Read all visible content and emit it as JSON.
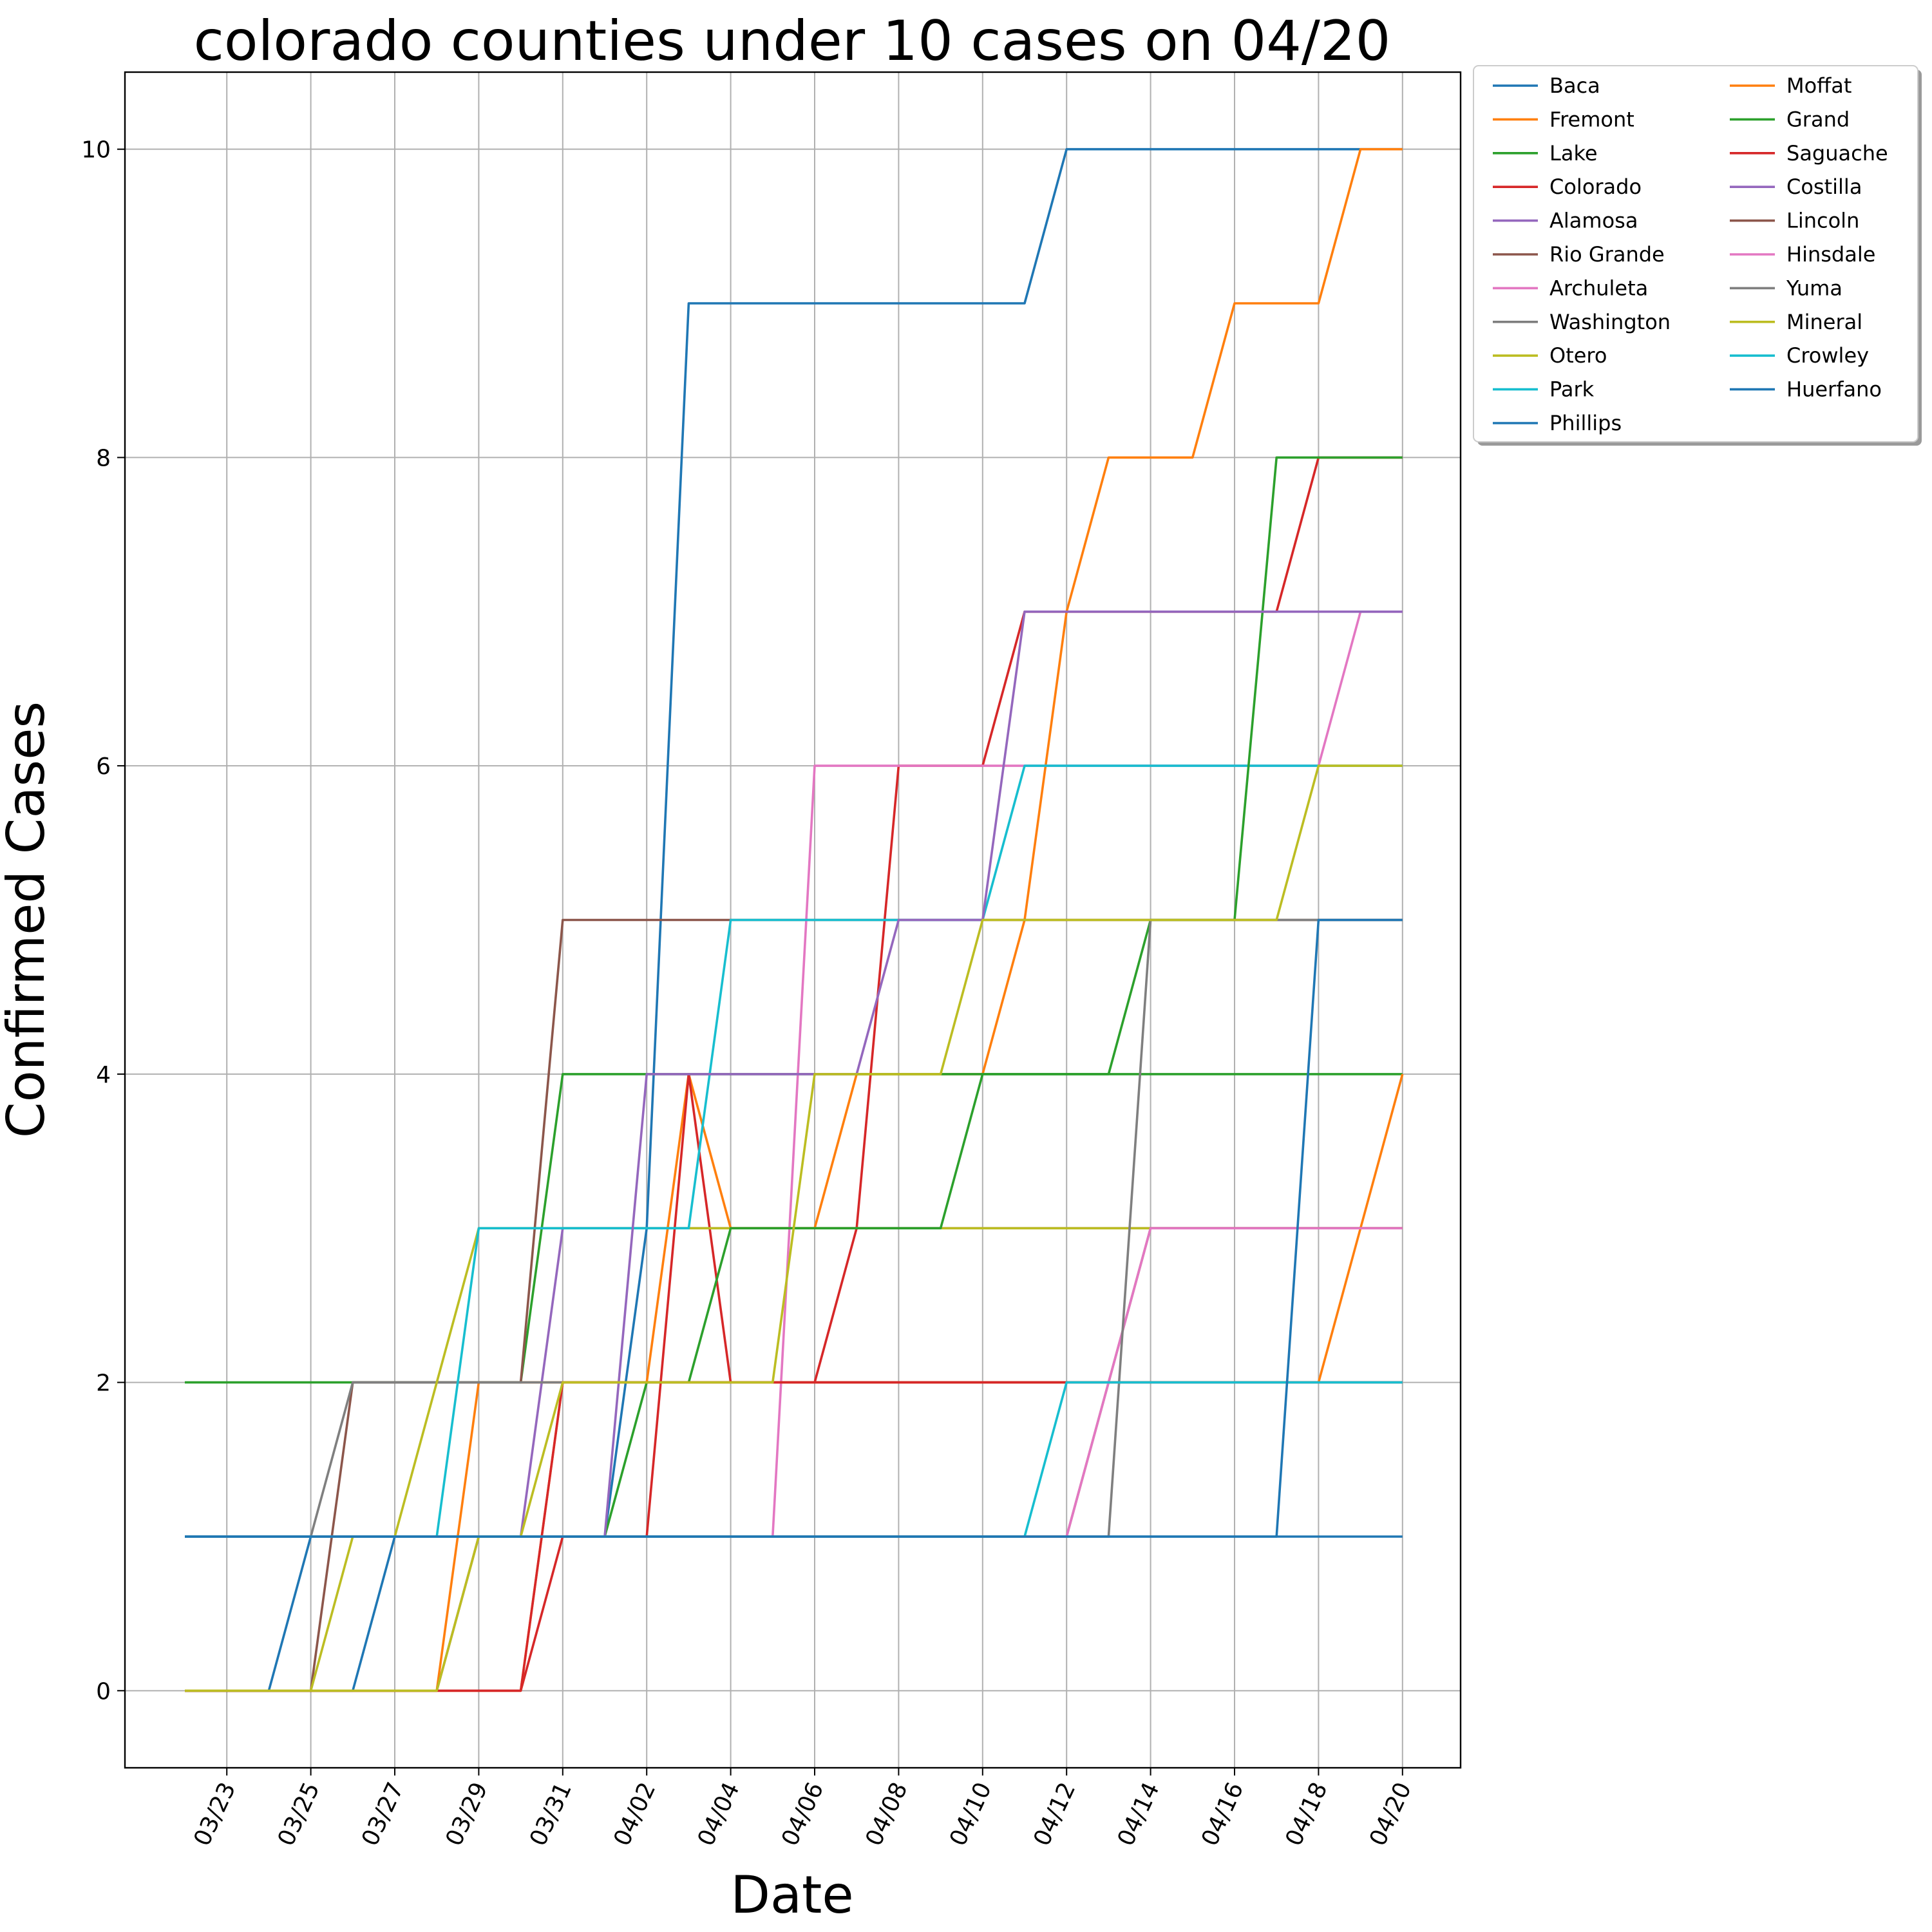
{
  "chart_data": {
    "type": "line",
    "title": "colorado counties under 10 cases on 04/20",
    "xlabel": "Date",
    "ylabel": "Confirmed Cases",
    "x": [
      "03/22",
      "03/23",
      "03/24",
      "03/25",
      "03/26",
      "03/27",
      "03/28",
      "03/29",
      "03/30",
      "03/31",
      "04/01",
      "04/02",
      "04/03",
      "04/04",
      "04/05",
      "04/06",
      "04/07",
      "04/08",
      "04/09",
      "04/10",
      "04/11",
      "04/12",
      "04/13",
      "04/14",
      "04/15",
      "04/16",
      "04/17",
      "04/18",
      "04/19",
      "04/20"
    ],
    "x_tick_labels": [
      "03/23",
      "03/25",
      "03/27",
      "03/29",
      "03/31",
      "04/02",
      "04/04",
      "04/06",
      "04/08",
      "04/10",
      "04/12",
      "04/14",
      "04/16",
      "04/18",
      "04/20"
    ],
    "y_ticks": [
      0,
      2,
      4,
      6,
      8,
      10
    ],
    "ylim": [
      -0.5,
      10.5
    ],
    "grid": true,
    "legend_position": "outside-top-right",
    "legend_columns": 2,
    "series": [
      {
        "name": "Baca",
        "color": "#1f77b4",
        "values": [
          0,
          0,
          0,
          1,
          1,
          1,
          1,
          1,
          1,
          1,
          1,
          3,
          9,
          9,
          9,
          9,
          9,
          9,
          9,
          9,
          9,
          10,
          10,
          10,
          10,
          10,
          10,
          10,
          10,
          10
        ]
      },
      {
        "name": "Fremont",
        "color": "#ff7f0e",
        "values": [
          0,
          0,
          0,
          0,
          0,
          0,
          0,
          2,
          2,
          2,
          2,
          2,
          4,
          3,
          3,
          3,
          4,
          4,
          4,
          4,
          5,
          7,
          8,
          8,
          8,
          9,
          9,
          9,
          10,
          10
        ]
      },
      {
        "name": "Lake",
        "color": "#2ca02c",
        "values": [
          2,
          2,
          2,
          2,
          2,
          2,
          2,
          2,
          2,
          4,
          4,
          4,
          4,
          4,
          4,
          4,
          4,
          4,
          4,
          4,
          4,
          4,
          4,
          4,
          4,
          4,
          4,
          4,
          4,
          4
        ]
      },
      {
        "name": "Colorado",
        "color": "#d62728",
        "values": [
          0,
          0,
          0,
          0,
          0,
          0,
          0,
          0,
          0,
          1,
          1,
          1,
          4,
          2,
          2,
          2,
          3,
          6,
          6,
          6,
          7,
          7,
          7,
          7,
          7,
          7,
          7,
          8,
          8,
          8
        ]
      },
      {
        "name": "Alamosa",
        "color": "#9467bd",
        "values": [
          1,
          1,
          1,
          1,
          1,
          1,
          1,
          1,
          1,
          3,
          3,
          3,
          3,
          3,
          3,
          3,
          3,
          3,
          3,
          3,
          3,
          3,
          3,
          3,
          3,
          3,
          3,
          3,
          3,
          3
        ]
      },
      {
        "name": "Rio Grande",
        "color": "#8c564b",
        "values": [
          0,
          0,
          0,
          0,
          2,
          2,
          2,
          2,
          2,
          5,
          5,
          5,
          5,
          5,
          5,
          5,
          5,
          5,
          5,
          5,
          5,
          5,
          5,
          5,
          5,
          5,
          5,
          5,
          5,
          5
        ]
      },
      {
        "name": "Archuleta",
        "color": "#e377c2",
        "values": [
          1,
          1,
          1,
          1,
          1,
          1,
          1,
          1,
          1,
          1,
          1,
          1,
          1,
          1,
          1,
          6,
          6,
          6,
          6,
          6,
          6,
          6,
          6,
          6,
          6,
          6,
          6,
          6,
          7,
          7
        ]
      },
      {
        "name": "Washington",
        "color": "#7f7f7f",
        "values": [
          1,
          1,
          1,
          1,
          2,
          2,
          2,
          2,
          2,
          2,
          2,
          2,
          2,
          2,
          2,
          2,
          2,
          2,
          2,
          2,
          2,
          2,
          2,
          2,
          2,
          2,
          2,
          2,
          2,
          2
        ]
      },
      {
        "name": "Otero",
        "color": "#bcbd22",
        "values": [
          0,
          0,
          0,
          0,
          1,
          1,
          2,
          3,
          3,
          3,
          3,
          3,
          3,
          3,
          3,
          3,
          3,
          3,
          3,
          3,
          3,
          3,
          3,
          3,
          3,
          3,
          3,
          3,
          3,
          3
        ]
      },
      {
        "name": "Park",
        "color": "#17becf",
        "values": [
          1,
          1,
          1,
          1,
          1,
          1,
          1,
          3,
          3,
          3,
          3,
          3,
          3,
          5,
          5,
          5,
          5,
          5,
          5,
          5,
          6,
          6,
          6,
          6,
          6,
          6,
          6,
          6,
          6,
          6
        ]
      },
      {
        "name": "Phillips",
        "color": "#1f77b4",
        "values": [
          0,
          0,
          0,
          0,
          0,
          1,
          1,
          1,
          1,
          1,
          1,
          1,
          1,
          1,
          1,
          1,
          1,
          1,
          1,
          1,
          1,
          1,
          1,
          1,
          1,
          1,
          1,
          1,
          1,
          1
        ]
      },
      {
        "name": "Moffat",
        "color": "#ff7f0e",
        "values": [
          0,
          0,
          0,
          0,
          0,
          0,
          0,
          0,
          0,
          2,
          2,
          2,
          2,
          2,
          2,
          2,
          2,
          2,
          2,
          2,
          2,
          2,
          2,
          2,
          2,
          2,
          2,
          2,
          3,
          4
        ]
      },
      {
        "name": "Grand",
        "color": "#2ca02c",
        "values": [
          1,
          1,
          1,
          1,
          1,
          1,
          1,
          1,
          1,
          1,
          1,
          2,
          2,
          3,
          3,
          3,
          3,
          3,
          3,
          4,
          4,
          4,
          4,
          5,
          5,
          5,
          8,
          8,
          8,
          8
        ]
      },
      {
        "name": "Saguache",
        "color": "#d62728",
        "values": [
          0,
          0,
          0,
          0,
          0,
          0,
          0,
          0,
          0,
          2,
          2,
          2,
          2,
          2,
          2,
          2,
          2,
          2,
          2,
          2,
          2,
          2,
          2,
          2,
          2,
          2,
          2,
          2,
          2,
          2
        ]
      },
      {
        "name": "Costilla",
        "color": "#9467bd",
        "values": [
          1,
          1,
          1,
          1,
          1,
          1,
          1,
          1,
          1,
          1,
          1,
          4,
          4,
          4,
          4,
          4,
          4,
          5,
          5,
          5,
          7,
          7,
          7,
          7,
          7,
          7,
          7,
          7,
          7,
          7
        ]
      },
      {
        "name": "Lincoln",
        "color": "#8c564b",
        "values": [
          0,
          0,
          0,
          0,
          0,
          0,
          0,
          1,
          1,
          1,
          1,
          1,
          1,
          1,
          1,
          1,
          1,
          1,
          1,
          1,
          1,
          1,
          2,
          3,
          3,
          3,
          3,
          3,
          3,
          3
        ]
      },
      {
        "name": "Hinsdale",
        "color": "#e377c2",
        "values": [
          1,
          1,
          1,
          1,
          1,
          1,
          1,
          1,
          1,
          1,
          1,
          1,
          1,
          1,
          1,
          1,
          1,
          1,
          1,
          1,
          1,
          1,
          2,
          3,
          3,
          3,
          3,
          3,
          3,
          3
        ]
      },
      {
        "name": "Yuma",
        "color": "#7f7f7f",
        "values": [
          1,
          1,
          1,
          1,
          1,
          1,
          1,
          1,
          1,
          1,
          1,
          1,
          1,
          1,
          1,
          1,
          1,
          1,
          1,
          1,
          1,
          1,
          1,
          5,
          5,
          5,
          5,
          5,
          5,
          5
        ]
      },
      {
        "name": "Mineral",
        "color": "#bcbd22",
        "values": [
          0,
          0,
          0,
          0,
          0,
          0,
          0,
          1,
          1,
          2,
          2,
          2,
          2,
          2,
          2,
          4,
          4,
          4,
          4,
          5,
          5,
          5,
          5,
          5,
          5,
          5,
          5,
          6,
          6,
          6
        ]
      },
      {
        "name": "Crowley",
        "color": "#17becf",
        "values": [
          1,
          1,
          1,
          1,
          1,
          1,
          1,
          1,
          1,
          1,
          1,
          1,
          1,
          1,
          1,
          1,
          1,
          1,
          1,
          1,
          1,
          2,
          2,
          2,
          2,
          2,
          2,
          2,
          2,
          2
        ]
      },
      {
        "name": "Huerfano",
        "color": "#1f77b4",
        "values": [
          1,
          1,
          1,
          1,
          1,
          1,
          1,
          1,
          1,
          1,
          1,
          1,
          1,
          1,
          1,
          1,
          1,
          1,
          1,
          1,
          1,
          1,
          1,
          1,
          1,
          1,
          1,
          5,
          5,
          5
        ]
      }
    ]
  }
}
